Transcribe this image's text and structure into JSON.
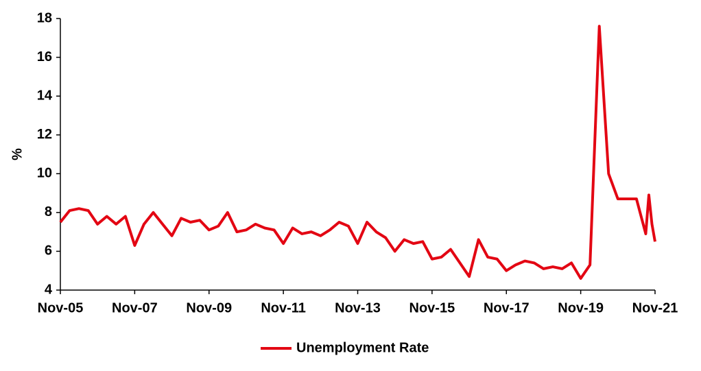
{
  "chart_data": {
    "type": "line",
    "y_label": "%",
    "x": [
      "Nov-05",
      "Feb-06",
      "May-06",
      "Aug-06",
      "Nov-06",
      "Feb-07",
      "May-07",
      "Aug-07",
      "Nov-07",
      "Feb-08",
      "May-08",
      "Aug-08",
      "Nov-08",
      "Feb-09",
      "May-09",
      "Aug-09",
      "Nov-09",
      "Feb-10",
      "May-10",
      "Aug-10",
      "Nov-10",
      "Feb-11",
      "May-11",
      "Aug-11",
      "Nov-11",
      "Feb-12",
      "May-12",
      "Aug-12",
      "Nov-12",
      "Feb-13",
      "May-13",
      "Aug-13",
      "Nov-13",
      "Feb-14",
      "May-14",
      "Aug-14",
      "Nov-14",
      "Feb-15",
      "May-15",
      "Aug-15",
      "Nov-15",
      "Feb-16",
      "May-16",
      "Aug-16",
      "Nov-16",
      "Feb-17",
      "May-17",
      "Aug-17",
      "Nov-17",
      "Feb-18",
      "May-18",
      "Aug-18",
      "Nov-18",
      "Feb-19",
      "May-19",
      "Aug-19",
      "Nov-19",
      "Feb-20",
      "May-20",
      "Aug-20",
      "Nov-20",
      "Feb-21",
      "May-21",
      "Aug-21",
      "Sep-21",
      "Oct-21",
      "Nov-21"
    ],
    "series": [
      {
        "name": "Unemployment Rate",
        "color": "#e30613",
        "values": [
          7.5,
          8.1,
          8.2,
          8.1,
          7.4,
          7.8,
          7.4,
          7.8,
          6.3,
          7.4,
          8.0,
          7.4,
          6.8,
          7.7,
          7.5,
          7.6,
          7.1,
          7.3,
          8.0,
          7.0,
          7.1,
          7.4,
          7.2,
          7.1,
          6.4,
          7.2,
          6.9,
          7.0,
          6.8,
          7.1,
          7.5,
          7.3,
          6.4,
          7.5,
          7.0,
          6.7,
          6.0,
          6.6,
          6.4,
          6.5,
          5.6,
          5.7,
          6.1,
          5.4,
          4.7,
          6.6,
          5.7,
          5.6,
          5.0,
          5.3,
          5.5,
          5.4,
          5.1,
          5.2,
          5.1,
          5.4,
          4.6,
          5.3,
          17.6,
          10.0,
          8.7,
          8.7,
          8.7,
          6.9,
          8.9,
          7.4,
          6.5
        ]
      }
    ],
    "xlim": [
      "Nov-05",
      "Nov-21"
    ],
    "xticks": [
      "Nov-05",
      "Nov-07",
      "Nov-09",
      "Nov-11",
      "Nov-13",
      "Nov-15",
      "Nov-17",
      "Nov-19",
      "Nov-21"
    ],
    "ylim": [
      4,
      18
    ],
    "yticks": [
      4,
      6,
      8,
      10,
      12,
      14,
      16,
      18
    ],
    "grid": false,
    "legend": "bottom"
  }
}
